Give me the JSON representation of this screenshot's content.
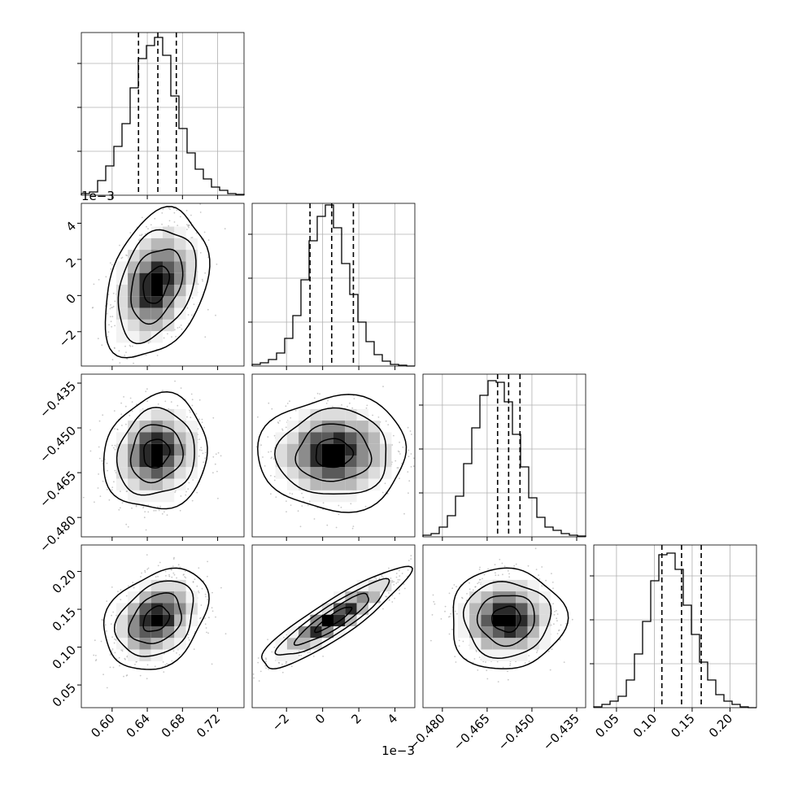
{
  "chart_data": {
    "type": "corner",
    "title": "",
    "parameters": [
      {
        "quantiles": [
          0.63,
          0.652,
          0.673
        ],
        "ticks": [
          0.6,
          0.64,
          0.68,
          0.72
        ],
        "tick_labels": [
          "0.60",
          "0.64",
          "0.68",
          "0.72"
        ],
        "range": [
          0.565,
          0.75
        ],
        "offset_label": ""
      },
      {
        "quantiles": [
          -0.0007,
          0.0005,
          0.0017
        ],
        "ticks": [
          -0.002,
          0.0,
          0.002,
          0.004
        ],
        "tick_labels": [
          "−2",
          "0",
          "2",
          "4"
        ],
        "range": [
          -0.0039,
          0.0051
        ],
        "offset_label": "1e−3"
      },
      {
        "quantiles": [
          -0.4615,
          -0.4578,
          -0.454
        ],
        "ticks": [
          -0.48,
          -0.465,
          -0.45,
          -0.435
        ],
        "tick_labels": [
          "−0.480",
          "−0.465",
          "−0.450",
          "−0.435"
        ],
        "range": [
          -0.4865,
          -0.432
        ],
        "offset_label": ""
      },
      {
        "quantiles": [
          0.11,
          0.136,
          0.162
        ],
        "ticks": [
          0.05,
          0.1,
          0.15,
          0.2
        ],
        "tick_labels": [
          "0.05",
          "0.10",
          "0.15",
          "0.20"
        ],
        "range": [
          0.02,
          0.235
        ],
        "offset_label": ""
      }
    ],
    "histograms": [
      [
        0.01,
        0.02,
        0.09,
        0.18,
        0.3,
        0.44,
        0.66,
        0.84,
        0.92,
        0.97,
        0.86,
        0.61,
        0.41,
        0.26,
        0.16,
        0.1,
        0.05,
        0.03,
        0.01,
        0.005
      ],
      [
        0.01,
        0.02,
        0.04,
        0.08,
        0.17,
        0.31,
        0.53,
        0.77,
        0.92,
        0.99,
        0.85,
        0.63,
        0.44,
        0.27,
        0.15,
        0.07,
        0.03,
        0.01,
        0.005,
        0.0
      ],
      [
        0.01,
        0.02,
        0.06,
        0.13,
        0.25,
        0.45,
        0.67,
        0.87,
        0.96,
        0.95,
        0.83,
        0.63,
        0.43,
        0.24,
        0.12,
        0.06,
        0.04,
        0.02,
        0.01,
        0.005
      ],
      [
        0.005,
        0.02,
        0.04,
        0.07,
        0.17,
        0.33,
        0.53,
        0.78,
        0.94,
        0.95,
        0.85,
        0.63,
        0.45,
        0.28,
        0.17,
        0.08,
        0.04,
        0.02,
        0.005,
        0.0
      ]
    ],
    "pairs": [
      {
        "row": 1,
        "col": 0,
        "mean": [
          0.65,
          0.0006
        ],
        "sd": [
          0.023,
          0.0016
        ],
        "corr": 0.33
      },
      {
        "row": 2,
        "col": 0,
        "mean": [
          0.65,
          -0.4585
        ],
        "sd": [
          0.023,
          0.0075
        ],
        "corr": 0.1
      },
      {
        "row": 2,
        "col": 1,
        "mean": [
          0.0006,
          -0.4585
        ],
        "sd": [
          0.0016,
          0.0075
        ],
        "corr": 0.02
      },
      {
        "row": 3,
        "col": 0,
        "mean": [
          0.65,
          0.137
        ],
        "sd": [
          0.023,
          0.026
        ],
        "corr": 0.3
      },
      {
        "row": 3,
        "col": 1,
        "mean": [
          0.0006,
          0.137
        ],
        "sd": [
          0.0016,
          0.026
        ],
        "corr": 0.9
      },
      {
        "row": 3,
        "col": 2,
        "mean": [
          -0.4585,
          0.137
        ],
        "sd": [
          0.0075,
          0.026
        ],
        "corr": 0.02
      }
    ],
    "contour_levels_sigma": [
      0.5,
      1.0,
      1.5,
      2.0
    ],
    "colors": {
      "line": "#000000",
      "grid": "#b0b0b0",
      "point": "#9a9a9a",
      "quantile": "#000000"
    },
    "grid": true
  }
}
